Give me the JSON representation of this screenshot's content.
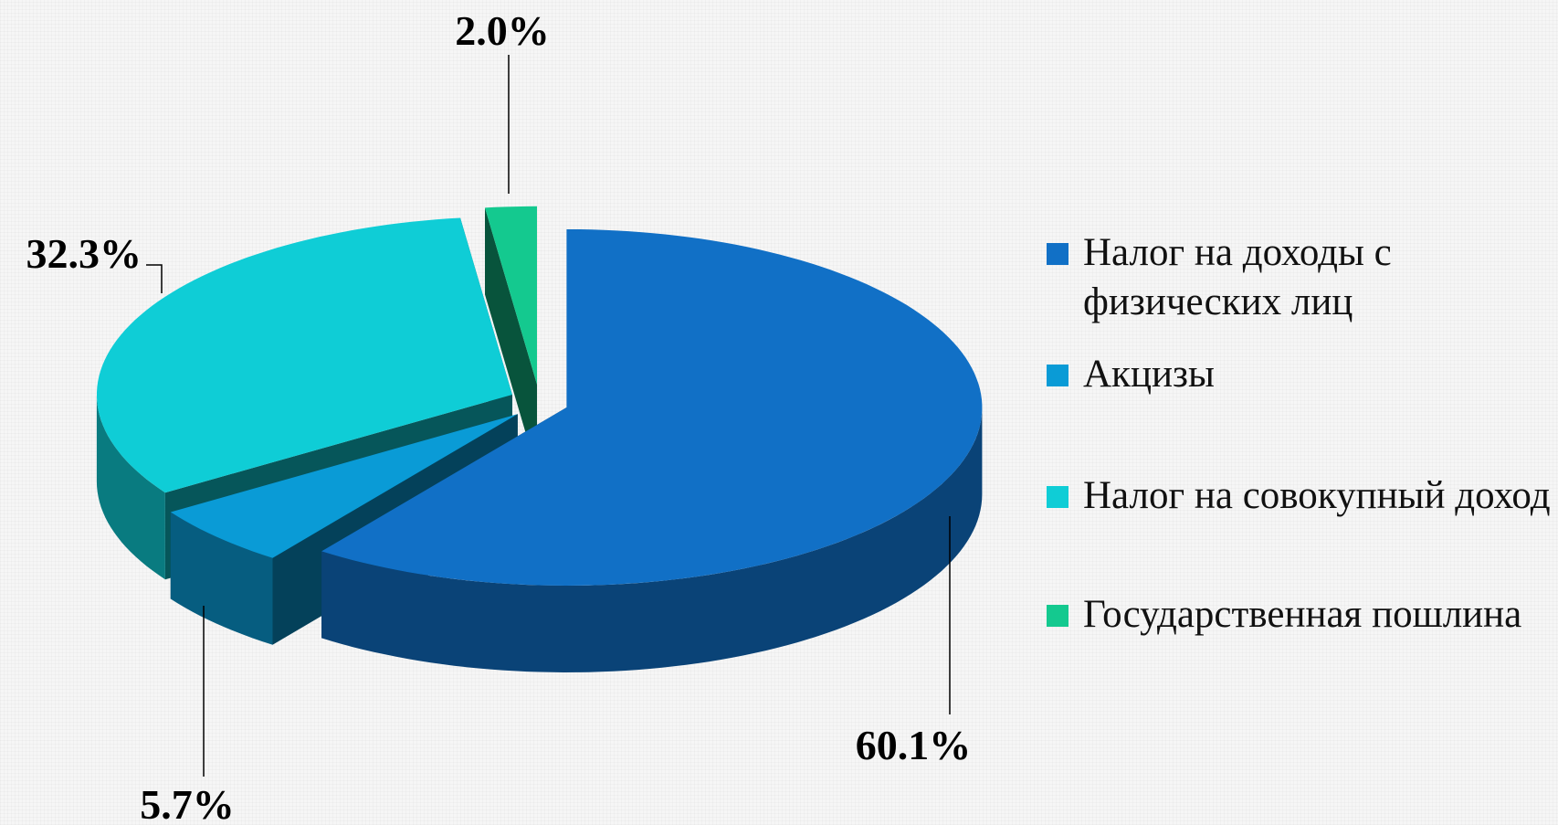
{
  "chart_data": {
    "type": "pie",
    "categories": [
      "Налог на доходы с физических лиц",
      "Акцизы",
      "Налог на совокупный доход",
      "Государственная пошлина"
    ],
    "values": [
      60.1,
      5.7,
      32.3,
      2.0
    ],
    "value_labels": [
      "60.1%",
      "5.7%",
      "32.3%",
      "2.0%"
    ],
    "colors": [
      "#1170c6",
      "#0a9bd6",
      "#0fcdd6",
      "#14c98f"
    ],
    "legend": "right"
  }
}
